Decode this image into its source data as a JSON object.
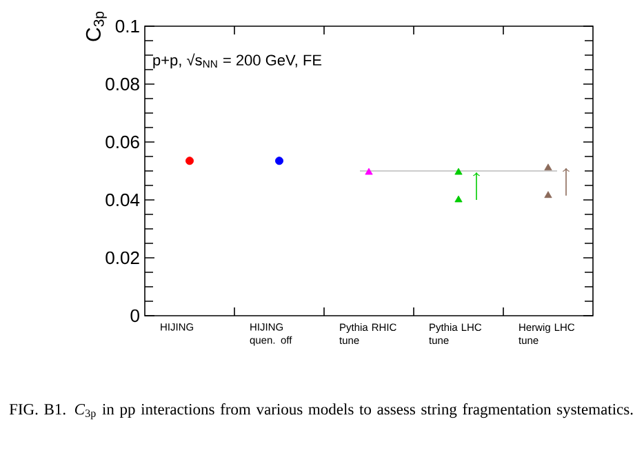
{
  "chart_data": {
    "type": "scatter",
    "ylabel": "C$_{3p}$",
    "categories": [
      "HIJING",
      "HIJING quen. off",
      "Pythia RHIC tune",
      "Pythia LHC tune",
      "Herwig LHC tune"
    ],
    "series": [
      {
        "color": "#ff0000",
        "marker": "circle",
        "values": [
          0.0535,
          null,
          null,
          null,
          null
        ]
      },
      {
        "color": "#0000ff",
        "marker": "circle",
        "values": [
          null,
          0.0535,
          null,
          null,
          null
        ]
      },
      {
        "color": "#ff00ff",
        "marker": "triangle",
        "values": [
          null,
          null,
          0.0495,
          null,
          null
        ]
      },
      {
        "color": "#00cc00",
        "marker": "triangle",
        "values": [
          null,
          null,
          null,
          0.0495,
          null
        ]
      },
      {
        "color": "#00cc00",
        "marker": "triangle",
        "values": [
          null,
          null,
          null,
          0.04,
          null
        ]
      },
      {
        "color": "#8b6a5a",
        "marker": "triangle",
        "values": [
          null,
          null,
          null,
          null,
          0.051
        ]
      },
      {
        "color": "#8b6a5a",
        "marker": "triangle",
        "values": [
          null,
          null,
          null,
          null,
          0.0415
        ]
      }
    ],
    "ylim": [
      0,
      0.1
    ],
    "yticks": [
      0,
      0.02,
      0.04,
      0.06,
      0.08,
      0.1
    ],
    "ref_lines": [
      {
        "axis": "y",
        "value": 0.05,
        "color": "#bbbbbb"
      }
    ],
    "grid": false,
    "annotations": [
      "p+p, √s$_{NN}$ = 200 GeV, FE",
      "FIG. B1. *C*$_{3p}$ in pp interactions from various models to assess string fragmentation systematics."
    ]
  }
}
